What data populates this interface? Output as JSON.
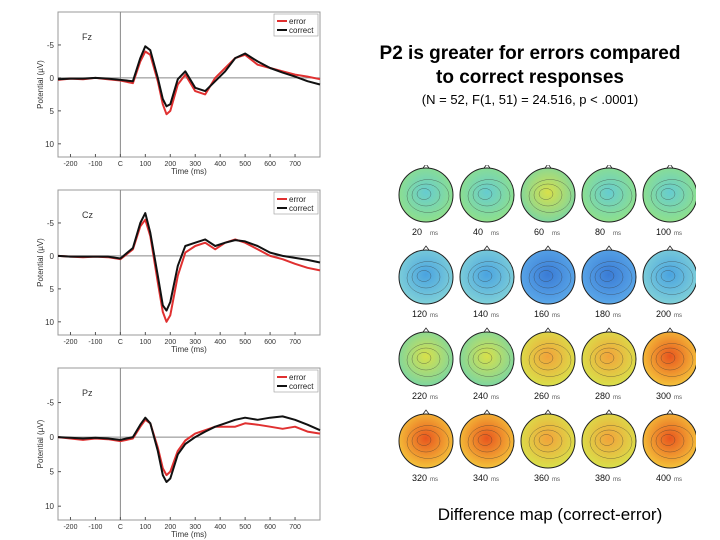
{
  "slide": {
    "title_line1": "P2 is greater for errors compared",
    "title_line2": "to correct responses",
    "stats": "(N = 52, F(1, 51) = 24.516, p < .0001)",
    "difference_caption": "Difference map (correct-error)"
  },
  "colors": {
    "error": "#e03030",
    "correct": "#111111",
    "axis": "#888888"
  },
  "chart_data": [
    {
      "type": "line",
      "electrode": "Fz",
      "xlabel": "Time (ms)",
      "ylabel": "Potential (µV)",
      "xticks": [
        -200,
        -100,
        0,
        100,
        200,
        300,
        400,
        500,
        600,
        700
      ],
      "xtick_labels": [
        "-200",
        "-100",
        "C",
        "100",
        "200",
        "300",
        "400",
        "500",
        "600",
        "700"
      ],
      "yticks": [
        -5,
        0,
        5,
        10
      ],
      "ylim": [
        -10,
        12
      ],
      "xlim": [
        -250,
        800
      ],
      "y_inverted": true,
      "legend": [
        "error",
        "correct"
      ],
      "x": [
        -250,
        -200,
        -150,
        -100,
        -50,
        0,
        50,
        80,
        100,
        120,
        150,
        170,
        185,
        200,
        230,
        260,
        300,
        340,
        380,
        420,
        460,
        500,
        550,
        600,
        650,
        700,
        750,
        800
      ],
      "series": [
        {
          "name": "error",
          "values": [
            0.3,
            0.1,
            0.2,
            0.0,
            0.2,
            0.4,
            0.8,
            -2.5,
            -4.0,
            -3.5,
            0.5,
            4.0,
            5.5,
            5.0,
            1.0,
            -0.5,
            2.0,
            2.5,
            0.0,
            -1.5,
            -3.0,
            -3.5,
            -2.0,
            -1.5,
            -1.0,
            -0.5,
            -0.2,
            0.2
          ]
        },
        {
          "name": "correct",
          "values": [
            0.2,
            0.1,
            0.1,
            0.0,
            0.1,
            0.3,
            0.5,
            -3.0,
            -4.8,
            -4.2,
            0.0,
            3.2,
            4.3,
            4.0,
            0.2,
            -1.0,
            1.5,
            2.0,
            0.5,
            -1.0,
            -3.0,
            -3.7,
            -2.5,
            -1.5,
            -0.8,
            -0.2,
            0.5,
            1.0
          ]
        }
      ]
    },
    {
      "type": "line",
      "electrode": "Cz",
      "xlabel": "Time (ms)",
      "ylabel": "Potential (µV)",
      "xticks": [
        -200,
        -100,
        0,
        100,
        200,
        300,
        400,
        500,
        600,
        700
      ],
      "xtick_labels": [
        "-200",
        "-100",
        "C",
        "100",
        "200",
        "300",
        "400",
        "500",
        "600",
        "700"
      ],
      "yticks": [
        -5,
        0,
        5,
        10
      ],
      "ylim": [
        -10,
        12
      ],
      "xlim": [
        -250,
        800
      ],
      "y_inverted": true,
      "legend": [
        "error",
        "correct"
      ],
      "x": [
        -250,
        -200,
        -150,
        -100,
        -50,
        0,
        50,
        80,
        100,
        120,
        150,
        170,
        185,
        200,
        230,
        260,
        300,
        340,
        380,
        420,
        460,
        500,
        550,
        600,
        650,
        700,
        750,
        800
      ],
      "series": [
        {
          "name": "error",
          "values": [
            0.0,
            0.1,
            0.2,
            0.1,
            0.2,
            0.5,
            -1.0,
            -4.5,
            -5.5,
            -3.0,
            4.0,
            8.5,
            10.0,
            9.0,
            3.0,
            -0.5,
            -1.5,
            -2.0,
            -1.0,
            -2.0,
            -2.5,
            -2.0,
            -1.0,
            0.0,
            0.5,
            1.2,
            1.8,
            2.2
          ]
        },
        {
          "name": "correct",
          "values": [
            0.0,
            0.1,
            0.1,
            0.1,
            0.1,
            0.4,
            -1.2,
            -5.0,
            -6.5,
            -3.5,
            3.0,
            7.5,
            8.3,
            7.0,
            1.5,
            -1.5,
            -2.0,
            -2.5,
            -1.5,
            -2.0,
            -2.4,
            -2.2,
            -1.5,
            -0.5,
            0.0,
            0.3,
            0.6,
            1.0
          ]
        }
      ]
    },
    {
      "type": "line",
      "electrode": "Pz",
      "xlabel": "Time (ms)",
      "ylabel": "Potential (µV)",
      "xticks": [
        -200,
        -100,
        0,
        100,
        200,
        300,
        400,
        500,
        600,
        700
      ],
      "xtick_labels": [
        "-200",
        "-100",
        "C",
        "100",
        "200",
        "300",
        "400",
        "500",
        "600",
        "700"
      ],
      "yticks": [
        -5,
        0,
        5,
        10
      ],
      "ylim": [
        -10,
        12
      ],
      "xlim": [
        -250,
        800
      ],
      "y_inverted": true,
      "legend": [
        "error",
        "correct"
      ],
      "x": [
        -250,
        -200,
        -150,
        -100,
        -50,
        0,
        50,
        80,
        100,
        120,
        150,
        170,
        185,
        200,
        230,
        260,
        300,
        340,
        380,
        420,
        460,
        500,
        550,
        600,
        650,
        700,
        750,
        800
      ],
      "series": [
        {
          "name": "error",
          "values": [
            0.0,
            0.2,
            0.4,
            0.2,
            0.3,
            0.6,
            0.2,
            -1.5,
            -2.5,
            -2.0,
            1.5,
            4.5,
            5.5,
            5.0,
            2.0,
            0.5,
            -0.5,
            -1.0,
            -1.5,
            -1.5,
            -1.5,
            -2.0,
            -1.8,
            -1.5,
            -1.2,
            -1.5,
            -0.8,
            -0.5
          ]
        },
        {
          "name": "correct",
          "values": [
            0.0,
            0.1,
            0.2,
            0.1,
            0.2,
            0.4,
            0.0,
            -1.8,
            -2.8,
            -2.0,
            2.0,
            5.5,
            6.5,
            6.0,
            2.5,
            1.0,
            0.0,
            -0.8,
            -1.5,
            -2.0,
            -2.5,
            -2.8,
            -2.5,
            -2.8,
            -3.0,
            -2.5,
            -1.8,
            -1.0
          ]
        }
      ]
    }
  ],
  "topomaps": {
    "unit": "ms",
    "labels": [
      "20",
      "40",
      "60",
      "80",
      "100",
      "120",
      "140",
      "160",
      "180",
      "200",
      "220",
      "240",
      "260",
      "280",
      "300",
      "320",
      "340",
      "360",
      "380",
      "400"
    ],
    "intensity": [
      0.15,
      0.1,
      0.2,
      0.15,
      0.1,
      -0.3,
      -0.4,
      -0.6,
      -0.5,
      -0.4,
      0.3,
      0.35,
      0.5,
      0.55,
      0.65,
      0.75,
      0.6,
      0.55,
      0.5,
      0.6
    ]
  }
}
